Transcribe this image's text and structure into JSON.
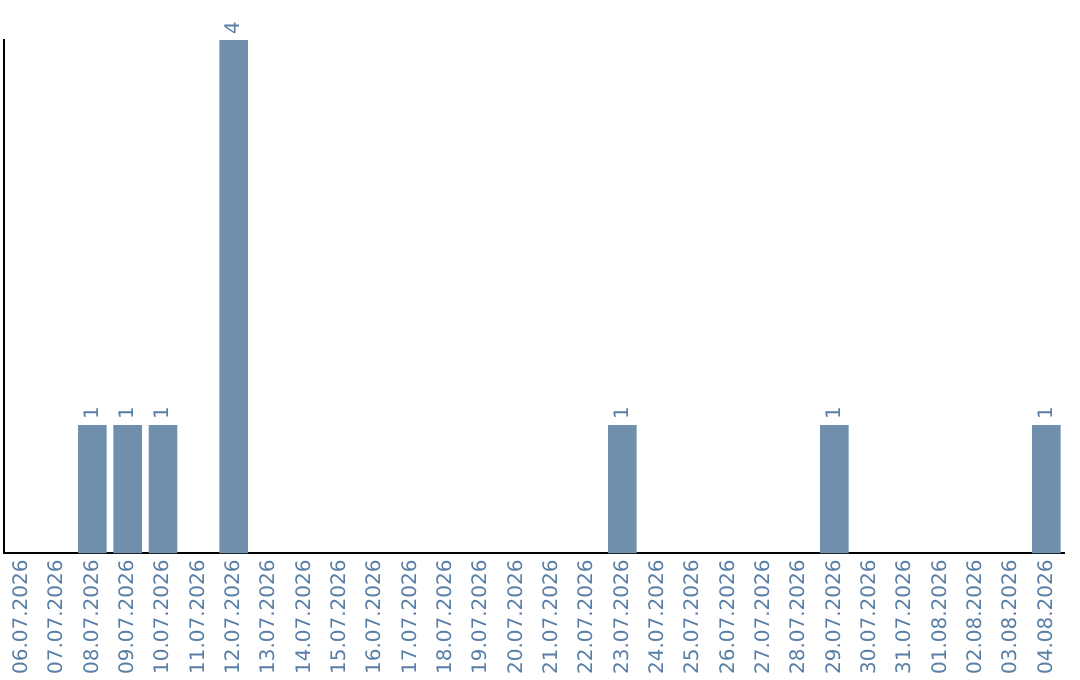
{
  "chart_data": {
    "type": "bar",
    "categories": [
      "06.07.2026",
      "07.07.2026",
      "08.07.2026",
      "09.07.2026",
      "10.07.2026",
      "11.07.2026",
      "12.07.2026",
      "13.07.2026",
      "14.07.2026",
      "15.07.2026",
      "16.07.2026",
      "17.07.2026",
      "18.07.2026",
      "19.07.2026",
      "20.07.2026",
      "21.07.2026",
      "22.07.2026",
      "23.07.2026",
      "24.07.2026",
      "25.07.2026",
      "26.07.2026",
      "27.07.2026",
      "28.07.2026",
      "29.07.2026",
      "30.07.2026",
      "31.07.2026",
      "01.08.2026",
      "02.08.2026",
      "03.08.2026",
      "04.08.2026"
    ],
    "values": [
      0,
      0,
      1,
      1,
      1,
      0,
      4,
      0,
      0,
      0,
      0,
      0,
      0,
      0,
      0,
      0,
      0,
      1,
      0,
      0,
      0,
      0,
      0,
      1,
      0,
      0,
      0,
      0,
      0,
      1
    ],
    "value_labels": [
      null,
      null,
      "1",
      "1",
      "1",
      null,
      "4",
      null,
      null,
      null,
      null,
      null,
      null,
      null,
      null,
      null,
      null,
      "1",
      null,
      null,
      null,
      null,
      null,
      "1",
      null,
      null,
      null,
      null,
      null,
      "1"
    ],
    "color": "#6f8fad",
    "grid": false,
    "legend": false,
    "tick_labels": "x"
  }
}
